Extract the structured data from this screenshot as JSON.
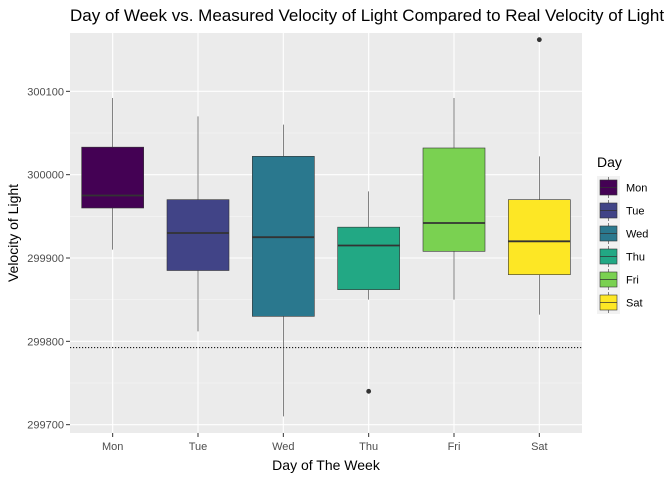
{
  "chart_data": {
    "type": "boxplot",
    "title": "Day of Week vs. Measured Velocity of Light Compared to Real Velocity of Light",
    "xlabel": "Day of The Week",
    "ylabel": "Velocity of Light",
    "categories": [
      "Mon",
      "Tue",
      "Wed",
      "Thu",
      "Fri",
      "Sat"
    ],
    "yticks": [
      299700,
      299800,
      299900,
      300000,
      300100
    ],
    "ylim": [
      299690,
      300170
    ],
    "grid": true,
    "reference_line": {
      "value": 299792.458,
      "style": "dotted"
    },
    "boxes": [
      {
        "day": "Mon",
        "whisker_low": 299910,
        "q1": 299960,
        "median": 299975,
        "q3": 300033,
        "whisker_high": 300092,
        "outliers": [],
        "color": "#440154"
      },
      {
        "day": "Tue",
        "whisker_low": 299812,
        "q1": 299885,
        "median": 299930,
        "q3": 299970,
        "whisker_high": 300070,
        "outliers": [],
        "color": "#414487"
      },
      {
        "day": "Wed",
        "whisker_low": 299710,
        "q1": 299830,
        "median": 299925,
        "q3": 300022,
        "whisker_high": 300060,
        "outliers": [],
        "color": "#2a788e"
      },
      {
        "day": "Thu",
        "whisker_low": 299850,
        "q1": 299862,
        "median": 299915,
        "q3": 299937,
        "whisker_high": 299980,
        "outliers": [
          299740
        ],
        "color": "#22a884"
      },
      {
        "day": "Fri",
        "whisker_low": 299850,
        "q1": 299908,
        "median": 299942,
        "q3": 300032,
        "whisker_high": 300092,
        "outliers": [],
        "color": "#7ad151"
      },
      {
        "day": "Sat",
        "whisker_low": 299832,
        "q1": 299880,
        "median": 299920,
        "q3": 299970,
        "whisker_high": 300022,
        "outliers": [
          300162
        ],
        "color": "#fde725"
      }
    ],
    "legend": {
      "title": "Day",
      "position": "right",
      "entries": [
        "Mon",
        "Tue",
        "Wed",
        "Thu",
        "Fri",
        "Sat"
      ]
    }
  }
}
